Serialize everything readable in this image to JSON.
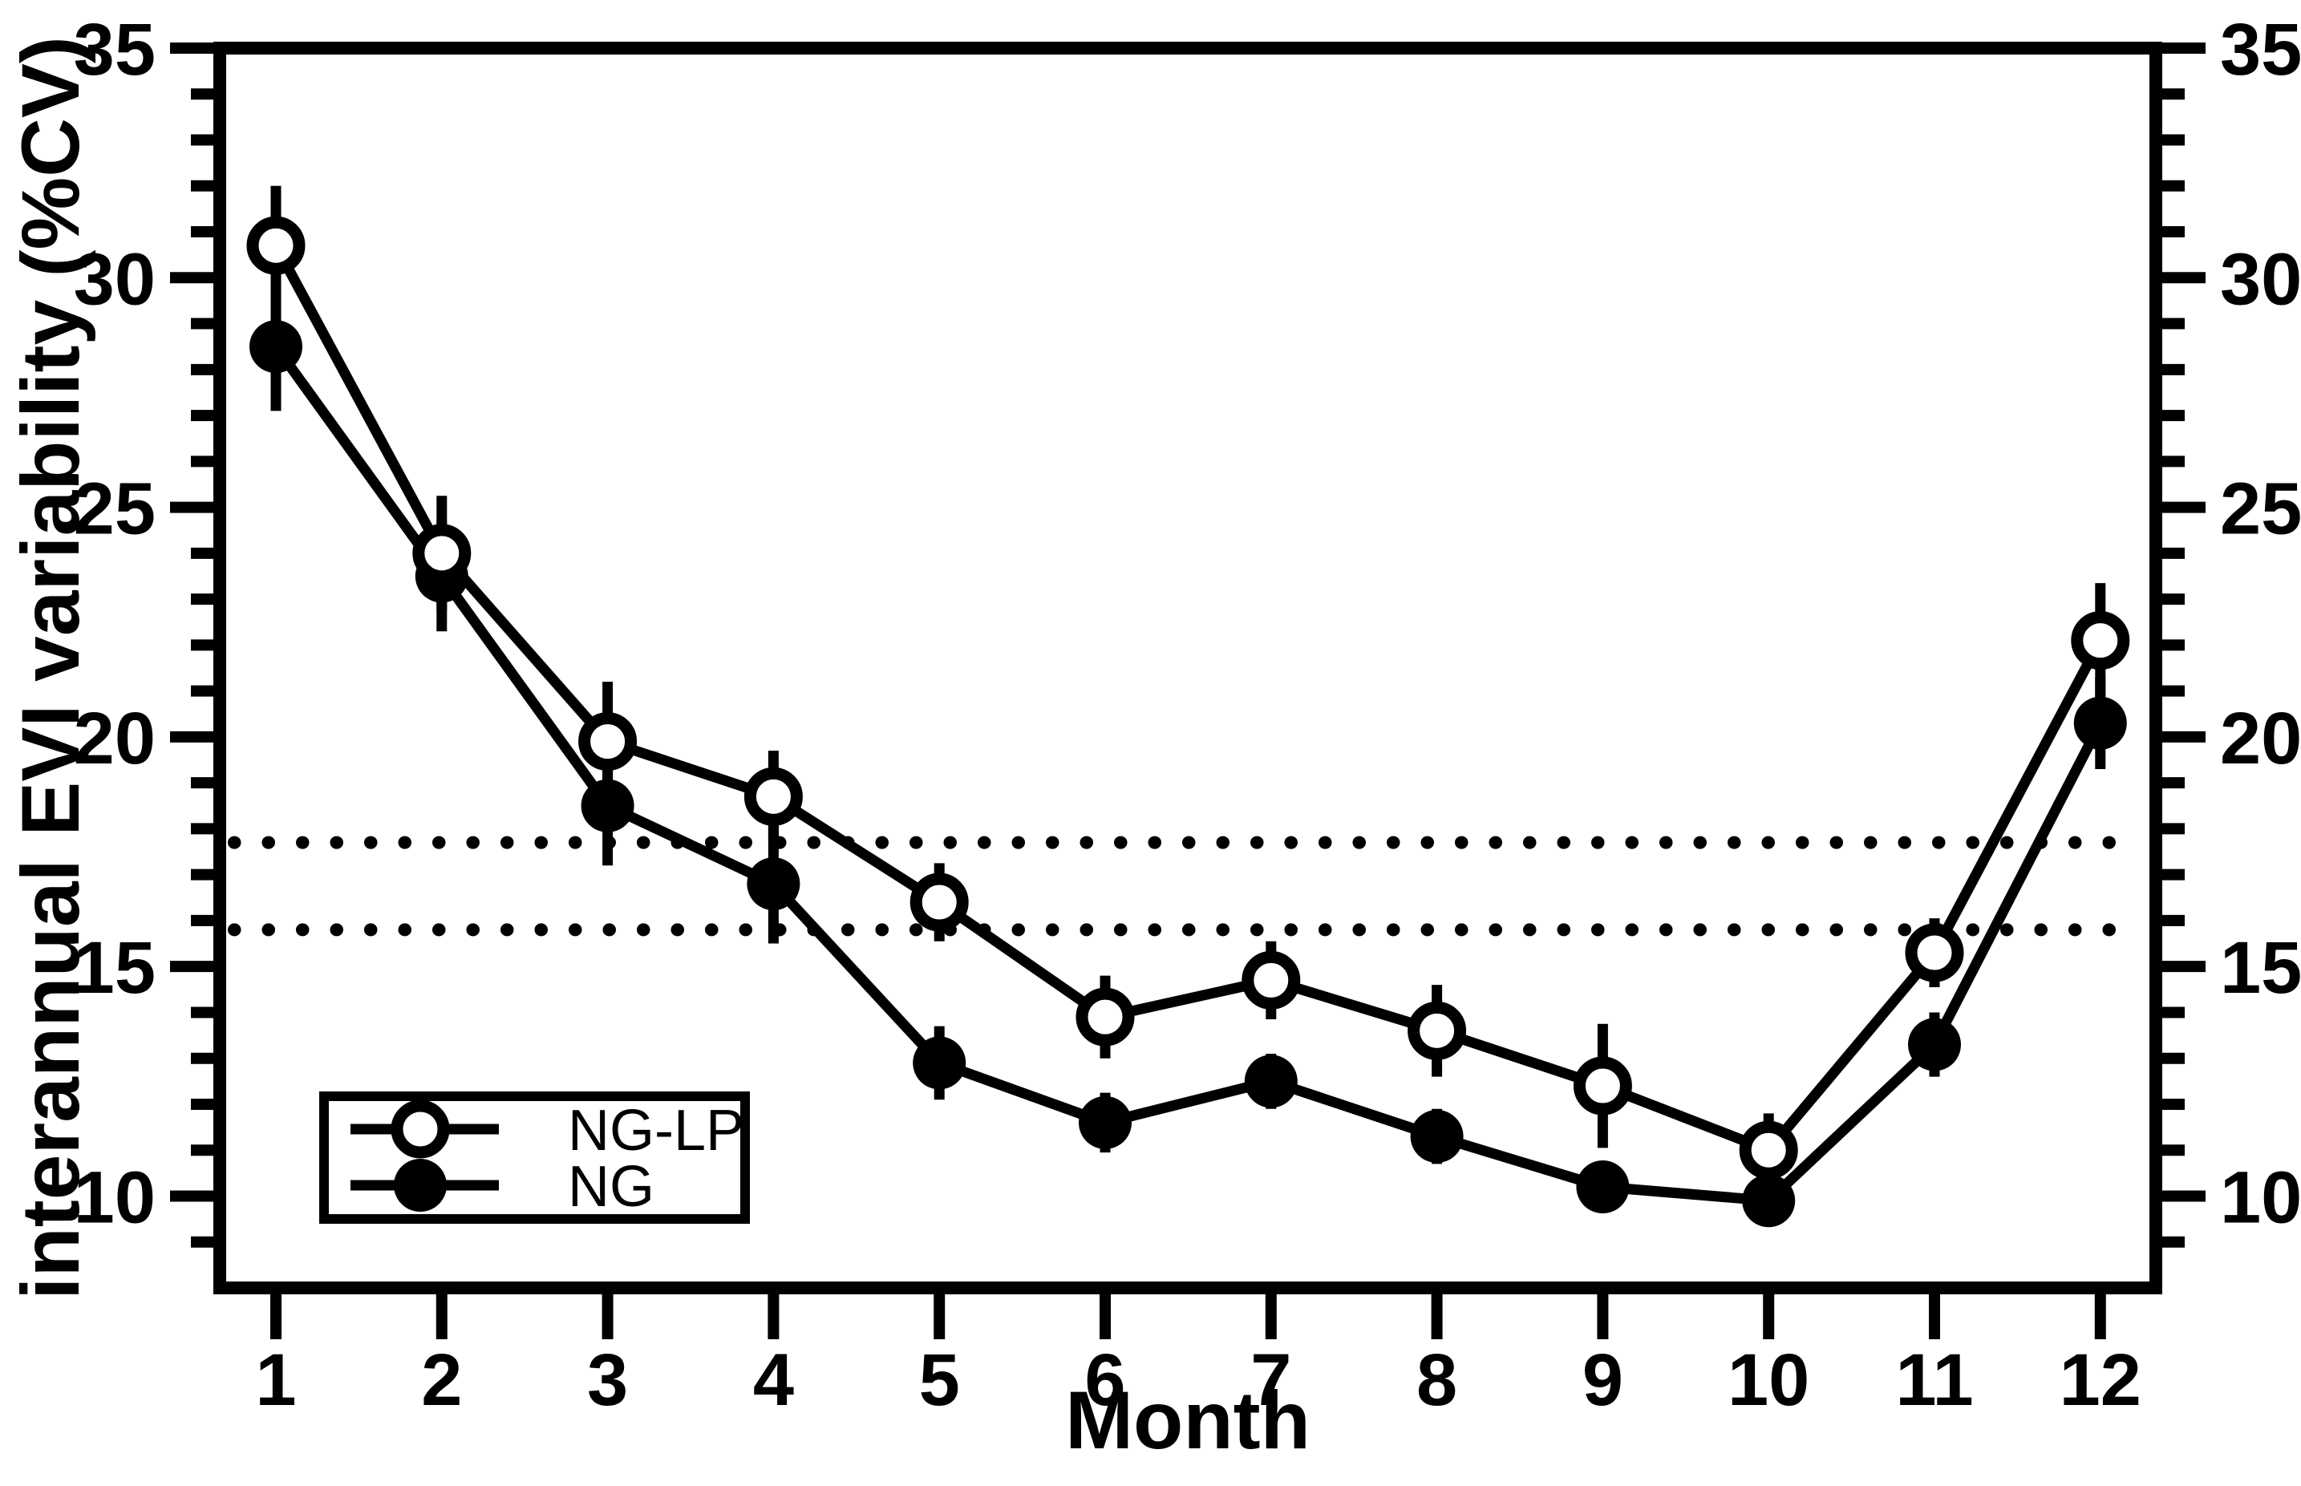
{
  "colors": {
    "foreground": "#000000",
    "background": "#ffffff"
  },
  "axes": {
    "x_title": "Month",
    "y_title": "interannual EVI variability (%CV)",
    "x_tick_labels": [
      "1",
      "2",
      "3",
      "4",
      "5",
      "6",
      "7",
      "8",
      "9",
      "10",
      "11",
      "12"
    ],
    "y_tick_labels": [
      "10",
      "15",
      "20",
      "25",
      "30",
      "35"
    ]
  },
  "legend": {
    "items": [
      {
        "label": "NG-LP",
        "marker": "open-circle"
      },
      {
        "label": "NG",
        "marker": "filled-circle"
      }
    ]
  },
  "chart_data": {
    "type": "line",
    "title": "",
    "xlabel": "Month",
    "ylabel": "interannual EVI variability (%CV)",
    "x": [
      1,
      2,
      3,
      4,
      5,
      6,
      7,
      8,
      9,
      10,
      11,
      12
    ],
    "xlim": [
      0.66,
      12.33
    ],
    "ylim": [
      8,
      35
    ],
    "yticks_major": [
      10,
      15,
      20,
      25,
      30,
      35
    ],
    "y_minor_step": 1,
    "grid": false,
    "legend_position": "lower-left",
    "series": [
      {
        "name": "NG-LP",
        "marker": "open-circle",
        "values": [
          30.7,
          24.0,
          19.9,
          18.7,
          16.4,
          13.9,
          14.7,
          13.6,
          12.4,
          11.0,
          15.3,
          22.1
        ],
        "errors": [
          1.3,
          1.25,
          1.3,
          1.0,
          0.85,
          0.9,
          0.85,
          1.0,
          1.35,
          0.8,
          0.75,
          1.25
        ]
      },
      {
        "name": "NG",
        "marker": "filled-circle",
        "values": [
          28.5,
          23.5,
          18.5,
          16.8,
          12.9,
          11.6,
          12.5,
          11.3,
          10.2,
          9.9,
          13.3,
          20.3
        ],
        "errors": [
          1.4,
          1.2,
          1.3,
          1.3,
          0.8,
          0.65,
          0.6,
          0.6,
          0.55,
          0.55,
          0.7,
          1.0
        ]
      }
    ],
    "reference_lines": {
      "style": "dotted",
      "values": [
        17.7,
        15.8
      ]
    }
  }
}
